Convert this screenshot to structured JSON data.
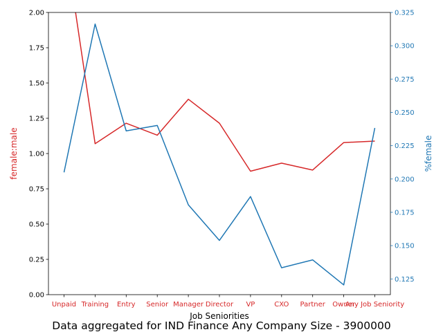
{
  "chart_data": {
    "type": "line",
    "title": "Data aggregated for IND Finance Any Company Size - 3900000",
    "xlabel": "Job Seniorities",
    "categories": [
      "Unpaid",
      "Training",
      "Entry",
      "Senior",
      "Manager",
      "Director",
      "VP",
      "CXO",
      "Partner",
      "Owner",
      "Any Job Seniority"
    ],
    "y_left": {
      "label": "female:male",
      "color": "#d62728",
      "ylim": [
        0,
        2.0
      ],
      "ticks": [
        "0.00",
        "0.25",
        "0.50",
        "0.75",
        "1.00",
        "1.25",
        "1.50",
        "1.75",
        "2.00"
      ]
    },
    "y_right": {
      "label": "%female",
      "color": "#1f77b4",
      "ylim": [
        0.1132,
        0.325
      ],
      "ticks": [
        "0.125",
        "0.150",
        "0.175",
        "0.200",
        "0.225",
        "0.250",
        "0.275",
        "0.300",
        "0.325"
      ]
    },
    "series": [
      {
        "axis": "left",
        "color": "#d62728",
        "values": [
          2.55,
          1.07,
          1.215,
          1.13,
          1.385,
          1.215,
          0.875,
          0.932,
          0.883,
          1.078,
          1.088
        ]
      },
      {
        "axis": "right",
        "color": "#1f77b4",
        "values": [
          0.205,
          0.3163,
          0.2361,
          0.2402,
          0.1806,
          0.1539,
          0.1868,
          0.1334,
          0.1393,
          0.1205,
          0.2383
        ]
      }
    ],
    "grid": false,
    "legend": "none"
  }
}
